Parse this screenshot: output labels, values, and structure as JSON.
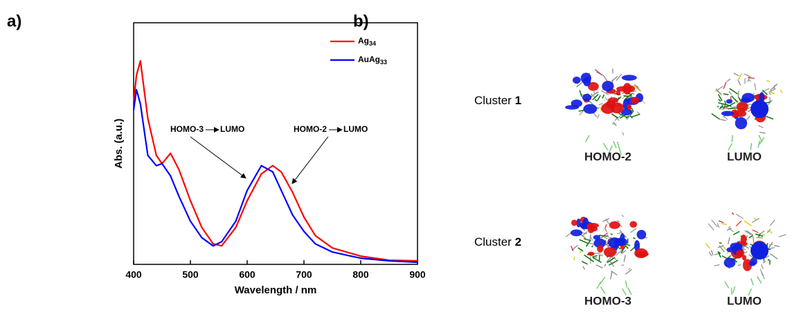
{
  "panel_labels": [
    "a)",
    "b)"
  ],
  "chart_data": {
    "type": "line",
    "x_label": "Wavelength / nm",
    "y_label": "Abs. (a.u.)",
    "x": [
      400,
      405,
      412,
      425,
      440,
      450,
      465,
      480,
      500,
      520,
      540,
      555,
      580,
      600,
      625,
      645,
      660,
      680,
      700,
      720,
      750,
      800,
      850,
      900
    ],
    "series": [
      {
        "name": "Ag34",
        "color": "#ff0000",
        "values": [
          0.79,
          0.92,
          0.99,
          0.71,
          0.53,
          0.49,
          0.54,
          0.46,
          0.31,
          0.18,
          0.1,
          0.09,
          0.18,
          0.31,
          0.44,
          0.48,
          0.45,
          0.35,
          0.23,
          0.14,
          0.08,
          0.04,
          0.02,
          0.017
        ]
      },
      {
        "name": "AuAg33",
        "color": "#0000ff",
        "values": [
          0.75,
          0.85,
          0.78,
          0.53,
          0.48,
          0.49,
          0.43,
          0.33,
          0.21,
          0.13,
          0.09,
          0.11,
          0.21,
          0.36,
          0.48,
          0.45,
          0.36,
          0.24,
          0.16,
          0.1,
          0.06,
          0.03,
          0.017,
          0.01
        ]
      }
    ],
    "xlim": [
      400,
      900
    ],
    "xticks": [
      400,
      500,
      600,
      700,
      800,
      900
    ],
    "ylim": [
      0,
      1.175
    ],
    "legend": "upper right",
    "annotations": [
      {
        "from": "HOMO-3",
        "to": "LUMO"
      },
      {
        "from": "HOMO-2",
        "to": "LUMO"
      }
    ]
  },
  "orbitals": {
    "rows": [
      {
        "label": "Cluster",
        "number": "1",
        "orbitals": [
          "HOMO-2",
          "LUMO"
        ]
      },
      {
        "label": "Cluster",
        "number": "2",
        "orbitals": [
          "HOMO-3",
          "LUMO"
        ]
      }
    ]
  }
}
